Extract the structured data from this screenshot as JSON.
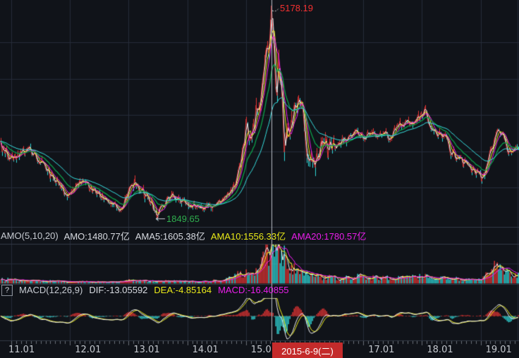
{
  "colors": {
    "background": "#101319",
    "grid": "#262c3a",
    "separator": "#333a47",
    "up_red": "#e43434",
    "down_cyan": "#2fd8d8",
    "ma_white": "#efefef",
    "ma_yellow": "#f2f21e",
    "ma_magenta": "#f01ef0",
    "ma_green": "#0ca04a",
    "ma_cyan": "#36dede",
    "peak_text_red": "#f43030",
    "low_text_green": "#2fae4e",
    "crosshair": "#b9bdc5",
    "badge_red": "#c42b2b",
    "macd_zero_red": "#8b2727"
  },
  "price_panel": {
    "peak_label": "5178.19",
    "low_label": "1849.65",
    "low_arrow": "←"
  },
  "amo_row": {
    "name": "AMO(5,10,20)",
    "amo": "AMO:1480.77亿",
    "ama5": "AMA5:1605.38亿",
    "ama10": "AMA10:1556.33亿",
    "ama20": "AMA20:1780.57亿"
  },
  "macd_row": {
    "help": "?",
    "name": "MACD(12,26,9)",
    "dif": "DIF:-13.05592",
    "dea": "DEA:-4.85164",
    "macd": "MACD:-16.40855"
  },
  "x_axis": {
    "labels": [
      "11.01",
      "12.01",
      "13.01",
      "14.01",
      "15.01",
      "17.01",
      "18.01",
      "19.01"
    ],
    "crosshair_date": "2015-6-9(二)"
  },
  "chart_data": [
    {
      "type": "line",
      "name": "index-price-daily",
      "title": "Shanghai Composite style index, 2011-2019",
      "ylim": [
        1800,
        5250
      ],
      "annotations": {
        "peak": {
          "x": 2015.445,
          "value": 5178.19
        },
        "low": {
          "x": 2013.482,
          "value": 1849.65
        }
      },
      "x_unit": "decimal-year",
      "keypoints": [
        [
          2010.8,
          3080
        ],
        [
          2010.88,
          2920
        ],
        [
          2011.0,
          2800
        ],
        [
          2011.08,
          2780
        ],
        [
          2011.2,
          2900
        ],
        [
          2011.33,
          2920
        ],
        [
          2011.45,
          2750
        ],
        [
          2011.58,
          2640
        ],
        [
          2011.72,
          2500
        ],
        [
          2011.85,
          2360
        ],
        [
          2011.97,
          2180
        ],
        [
          2012.05,
          2300
        ],
        [
          2012.17,
          2440
        ],
        [
          2012.3,
          2360
        ],
        [
          2012.42,
          2290
        ],
        [
          2012.55,
          2180
        ],
        [
          2012.7,
          2110
        ],
        [
          2012.85,
          2030
        ],
        [
          2012.92,
          2060
        ],
        [
          2013.0,
          2280
        ],
        [
          2013.1,
          2430
        ],
        [
          2013.22,
          2240
        ],
        [
          2013.35,
          2190
        ],
        [
          2013.42,
          2050
        ],
        [
          2013.482,
          1849.65
        ],
        [
          2013.55,
          2010
        ],
        [
          2013.65,
          2150
        ],
        [
          2013.75,
          2210
        ],
        [
          2013.88,
          2140
        ],
        [
          2014.0,
          2100
        ],
        [
          2014.12,
          2060
        ],
        [
          2014.25,
          2030
        ],
        [
          2014.4,
          2040
        ],
        [
          2014.55,
          2110
        ],
        [
          2014.7,
          2240
        ],
        [
          2014.82,
          2440
        ],
        [
          2014.92,
          2800
        ],
        [
          2015.0,
          3240
        ],
        [
          2015.06,
          3130
        ],
        [
          2015.14,
          3300
        ],
        [
          2015.22,
          3650
        ],
        [
          2015.3,
          4050
        ],
        [
          2015.36,
          4480
        ],
        [
          2015.42,
          4820
        ],
        [
          2015.445,
          5178.19
        ],
        [
          2015.48,
          4550
        ],
        [
          2015.52,
          3420
        ],
        [
          2015.555,
          4150
        ],
        [
          2015.6,
          3850
        ],
        [
          2015.63,
          3350
        ],
        [
          2015.66,
          2880
        ],
        [
          2015.7,
          3150
        ],
        [
          2015.74,
          3080
        ],
        [
          2015.78,
          3300
        ],
        [
          2015.83,
          3520
        ],
        [
          2015.88,
          3600
        ],
        [
          2015.93,
          3630
        ],
        [
          2015.98,
          3540
        ],
        [
          2016.02,
          3150
        ],
        [
          2016.06,
          2700
        ],
        [
          2016.1,
          2760
        ],
        [
          2016.14,
          2860
        ],
        [
          2016.18,
          2750
        ],
        [
          2016.22,
          2820
        ],
        [
          2016.3,
          3000
        ],
        [
          2016.4,
          2950
        ],
        [
          2016.5,
          2910
        ],
        [
          2016.62,
          3040
        ],
        [
          2016.75,
          3090
        ],
        [
          2016.88,
          3230
        ],
        [
          2016.96,
          3150
        ],
        [
          2017.05,
          3140
        ],
        [
          2017.15,
          3240
        ],
        [
          2017.25,
          3130
        ],
        [
          2017.35,
          3170
        ],
        [
          2017.45,
          3100
        ],
        [
          2017.55,
          3250
        ],
        [
          2017.65,
          3330
        ],
        [
          2017.75,
          3380
        ],
        [
          2017.82,
          3340
        ],
        [
          2017.9,
          3420
        ],
        [
          2018.0,
          3500
        ],
        [
          2018.06,
          3540
        ],
        [
          2018.12,
          3270
        ],
        [
          2018.2,
          3300
        ],
        [
          2018.3,
          3150
        ],
        [
          2018.4,
          3100
        ],
        [
          2018.48,
          2920
        ],
        [
          2018.55,
          2830
        ],
        [
          2018.65,
          2780
        ],
        [
          2018.75,
          2680
        ],
        [
          2018.85,
          2620
        ],
        [
          2018.95,
          2560
        ],
        [
          2019.02,
          2480
        ],
        [
          2019.1,
          2620
        ],
        [
          2019.18,
          2920
        ],
        [
          2019.26,
          3100
        ],
        [
          2019.32,
          3240
        ],
        [
          2019.38,
          3150
        ],
        [
          2019.45,
          2920
        ],
        [
          2019.52,
          2900
        ],
        [
          2019.6,
          2950
        ],
        [
          2019.7,
          2960
        ]
      ],
      "moving_averages": [
        "MA-white",
        "MA-yellow",
        "MA-magenta",
        "MA-green",
        "MA-cyan"
      ]
    },
    {
      "type": "bar",
      "name": "amo-turnover",
      "title": "AMO turnover (亿)",
      "ylim": [
        0,
        14200
      ],
      "x_unit": "decimal-year",
      "keypoints": [
        [
          2010.8,
          1400
        ],
        [
          2011.0,
          1250
        ],
        [
          2011.3,
          1050
        ],
        [
          2011.6,
          850
        ],
        [
          2011.95,
          600
        ],
        [
          2012.2,
          750
        ],
        [
          2012.5,
          650
        ],
        [
          2012.8,
          550
        ],
        [
          2013.0,
          1100
        ],
        [
          2013.2,
          950
        ],
        [
          2013.48,
          800
        ],
        [
          2013.7,
          900
        ],
        [
          2014.0,
          750
        ],
        [
          2014.3,
          800
        ],
        [
          2014.6,
          1250
        ],
        [
          2014.8,
          2200
        ],
        [
          2014.92,
          3300
        ],
        [
          2015.0,
          3200
        ],
        [
          2015.1,
          3800
        ],
        [
          2015.2,
          5200
        ],
        [
          2015.3,
          7500
        ],
        [
          2015.38,
          10000
        ],
        [
          2015.445,
          13800
        ],
        [
          2015.5,
          12500
        ],
        [
          2015.56,
          10000
        ],
        [
          2015.62,
          7500
        ],
        [
          2015.7,
          5000
        ],
        [
          2015.8,
          4000
        ],
        [
          2015.9,
          4300
        ],
        [
          2016.0,
          3300
        ],
        [
          2016.1,
          2700
        ],
        [
          2016.25,
          2200
        ],
        [
          2016.4,
          2000
        ],
        [
          2016.6,
          1900
        ],
        [
          2016.8,
          2300
        ],
        [
          2016.95,
          2500
        ],
        [
          2017.1,
          2100
        ],
        [
          2017.3,
          2000
        ],
        [
          2017.5,
          1900
        ],
        [
          2017.7,
          2100
        ],
        [
          2017.85,
          2300
        ],
        [
          2018.0,
          2400
        ],
        [
          2018.15,
          2100
        ],
        [
          2018.3,
          1900
        ],
        [
          2018.5,
          1700
        ],
        [
          2018.7,
          1450
        ],
        [
          2018.9,
          1300
        ],
        [
          2019.02,
          1700
        ],
        [
          2019.12,
          3000
        ],
        [
          2019.22,
          5000
        ],
        [
          2019.3,
          5400
        ],
        [
          2019.4,
          3600
        ],
        [
          2019.5,
          3000
        ],
        [
          2019.6,
          2700
        ],
        [
          2019.7,
          2900
        ]
      ],
      "moving_averages": [
        "AMA5-white",
        "AMA10-yellow",
        "AMA20-magenta"
      ]
    },
    {
      "type": "macd",
      "name": "macd-12-26-9",
      "derived_from": "index-price-daily",
      "params": [
        12,
        26,
        9
      ],
      "values_at_crosshair": {
        "DIF": -13.05592,
        "DEA": -4.85164,
        "MACD": -16.40855
      }
    }
  ],
  "crosshair": {
    "x_date": 2015.44,
    "label": "2015-6-9(二)"
  }
}
